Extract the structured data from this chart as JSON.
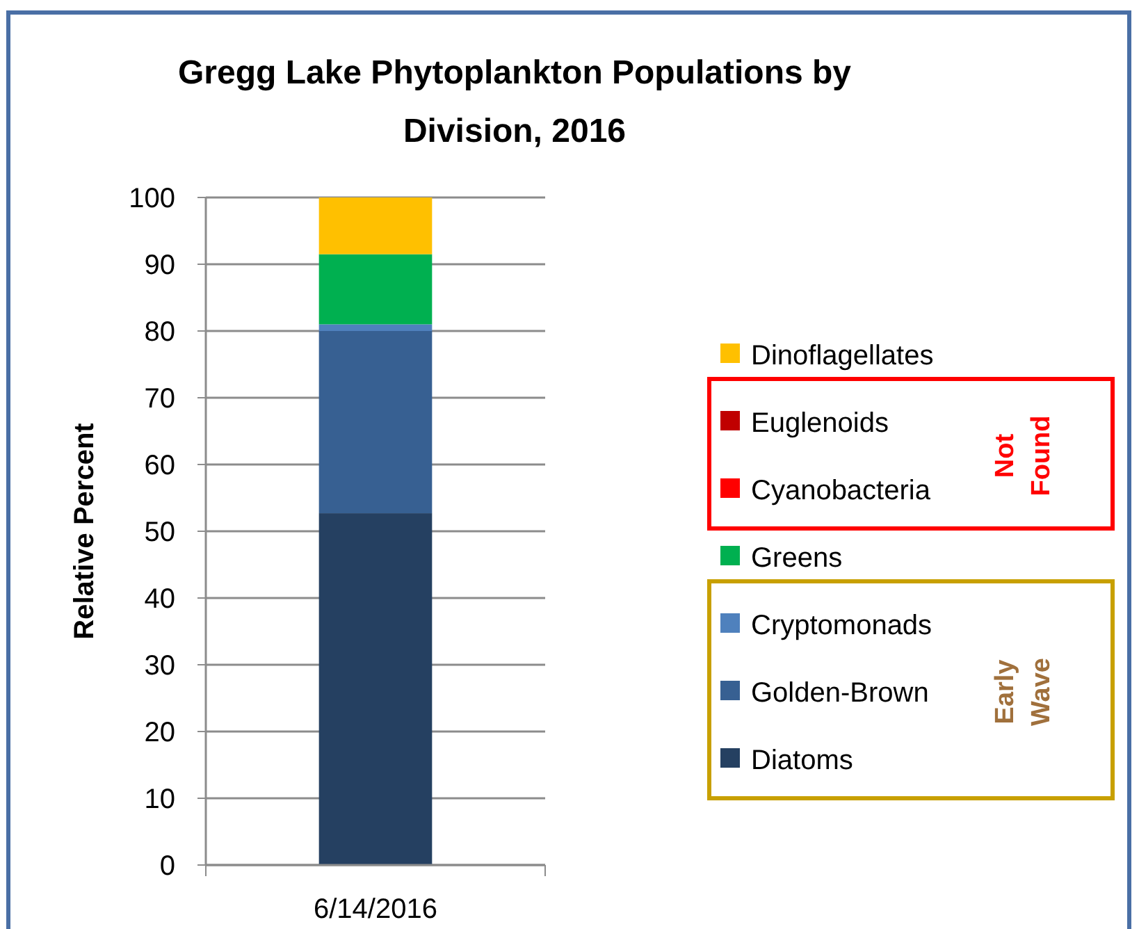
{
  "chart_data": {
    "type": "bar",
    "stacked": true,
    "title": "Gregg Lake Phytoplankton Populations by Division, 2016",
    "ylabel": "Relative Percent",
    "categories": [
      "6/14/2016"
    ],
    "ylim": [
      0,
      100
    ],
    "yticks": [
      0,
      10,
      20,
      30,
      40,
      50,
      60,
      70,
      80,
      90,
      100
    ],
    "grid": "y",
    "legend": "right",
    "annotations": [
      "Not Found",
      "Early Wave"
    ],
    "series": [
      {
        "name": "Diatoms",
        "color": "#254061",
        "values": [
          52.7
        ]
      },
      {
        "name": "Golden-Brown",
        "color": "#376092",
        "values": [
          27.3
        ]
      },
      {
        "name": "Cryptomonads",
        "color": "#4f81bd",
        "values": [
          1.0
        ]
      },
      {
        "name": "Greens",
        "color": "#00b050",
        "values": [
          10.5
        ]
      },
      {
        "name": "Cyanobacteria",
        "color": "#ff0000",
        "values": [
          0
        ]
      },
      {
        "name": "Euglenoids",
        "color": "#c00000",
        "values": [
          0
        ]
      },
      {
        "name": "Dinoflagellates",
        "color": "#ffc000",
        "values": [
          8.5
        ]
      }
    ]
  }
}
